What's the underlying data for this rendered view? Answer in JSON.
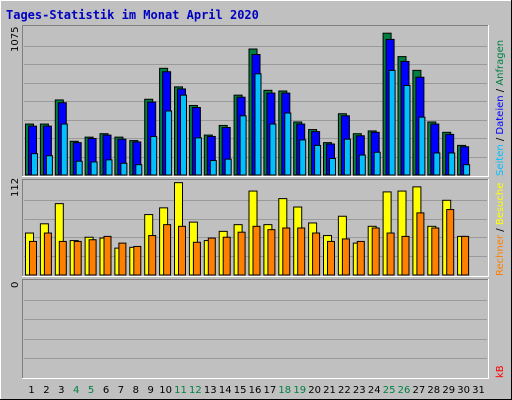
{
  "title": "Tages-Statistik im Monat April 2020",
  "colors": {
    "background": "#c0c0c0",
    "title": "#0000c0",
    "weekend_day": "#008040",
    "weekday": "#000000",
    "hits": "#008040",
    "files": "#0000ff",
    "pages": "#00c0ff",
    "visits": "#ffff00",
    "sites": "#ff8000",
    "kbytes": "#ff0000"
  },
  "legend": {
    "top": {
      "hits": "Anfragen",
      "sep1": " / ",
      "files": "Dateien",
      "sep2": " / ",
      "pages": "Seiten"
    },
    "middle": {
      "visits": "Besuche",
      "sep": " / ",
      "sites": "Rechner"
    },
    "bottom": {
      "kbytes": "kB"
    }
  },
  "chart_data": [
    {
      "type": "bar",
      "panel": "hits-files-pages",
      "ymax_label": "1075",
      "ylim": [
        0,
        1075
      ],
      "categories": [
        "1",
        "2",
        "3",
        "4",
        "5",
        "6",
        "7",
        "8",
        "9",
        "10",
        "11",
        "12",
        "13",
        "14",
        "15",
        "16",
        "17",
        "18",
        "19",
        "20",
        "21",
        "22",
        "23",
        "24",
        "25",
        "26",
        "27",
        "28",
        "29",
        "30",
        "31"
      ],
      "series": [
        {
          "name": "Anfragen",
          "values": [
            370,
            370,
            545,
            245,
            275,
            300,
            275,
            250,
            550,
            775,
            640,
            505,
            290,
            360,
            580,
            915,
            615,
            610,
            385,
            330,
            235,
            445,
            300,
            320,
            1030,
            860,
            760,
            385,
            310,
            215,
            0
          ]
        },
        {
          "name": "Dateien",
          "values": [
            355,
            355,
            525,
            235,
            265,
            290,
            260,
            240,
            530,
            750,
            625,
            490,
            280,
            345,
            565,
            875,
            595,
            595,
            370,
            315,
            225,
            430,
            285,
            310,
            985,
            825,
            710,
            370,
            295,
            205,
            0
          ]
        },
        {
          "name": "Seiten",
          "values": [
            155,
            140,
            370,
            100,
            95,
            110,
            85,
            75,
            280,
            465,
            580,
            270,
            105,
            115,
            430,
            735,
            370,
            450,
            255,
            215,
            120,
            260,
            145,
            165,
            760,
            650,
            420,
            160,
            160,
            75,
            0
          ]
        }
      ]
    },
    {
      "type": "bar",
      "panel": "visits-sites",
      "ymax_label": "112",
      "ylim": [
        0,
        112
      ],
      "categories": [
        "1",
        "2",
        "3",
        "4",
        "5",
        "6",
        "7",
        "8",
        "9",
        "10",
        "11",
        "12",
        "13",
        "14",
        "15",
        "16",
        "17",
        "18",
        "19",
        "20",
        "21",
        "22",
        "23",
        "24",
        "25",
        "26",
        "27",
        "28",
        "29",
        "30",
        "31"
      ],
      "series": [
        {
          "name": "Besuche",
          "values": [
            50,
            61,
            85,
            41,
            45,
            44,
            32,
            33,
            72,
            80,
            110,
            63,
            41,
            52,
            60,
            100,
            60,
            91,
            81,
            62,
            47,
            70,
            38,
            58,
            99,
            100,
            105,
            58,
            89,
            46,
            0
          ]
        },
        {
          "name": "Rechner",
          "values": [
            40,
            50,
            40,
            40,
            42,
            46,
            38,
            34,
            47,
            60,
            58,
            39,
            44,
            45,
            51,
            58,
            54,
            56,
            56,
            50,
            40,
            43,
            40,
            56,
            50,
            46,
            74,
            56,
            78,
            46,
            0
          ]
        }
      ]
    },
    {
      "type": "bar",
      "panel": "kbytes",
      "ymax_label": "0",
      "ylim": [
        0,
        1
      ],
      "categories": [
        "1",
        "2",
        "3",
        "4",
        "5",
        "6",
        "7",
        "8",
        "9",
        "10",
        "11",
        "12",
        "13",
        "14",
        "15",
        "16",
        "17",
        "18",
        "19",
        "20",
        "21",
        "22",
        "23",
        "24",
        "25",
        "26",
        "27",
        "28",
        "29",
        "30",
        "31"
      ],
      "series": [
        {
          "name": "kB",
          "values": [
            0,
            0,
            0,
            0,
            0,
            0,
            0,
            0,
            0,
            0,
            0,
            0,
            0,
            0,
            0,
            0,
            0,
            0,
            0,
            0,
            0,
            0,
            0,
            0,
            0,
            0,
            0,
            0,
            0,
            0,
            0
          ]
        }
      ]
    }
  ],
  "weekend_days": [
    "4",
    "5",
    "11",
    "12",
    "18",
    "19",
    "25",
    "26"
  ]
}
